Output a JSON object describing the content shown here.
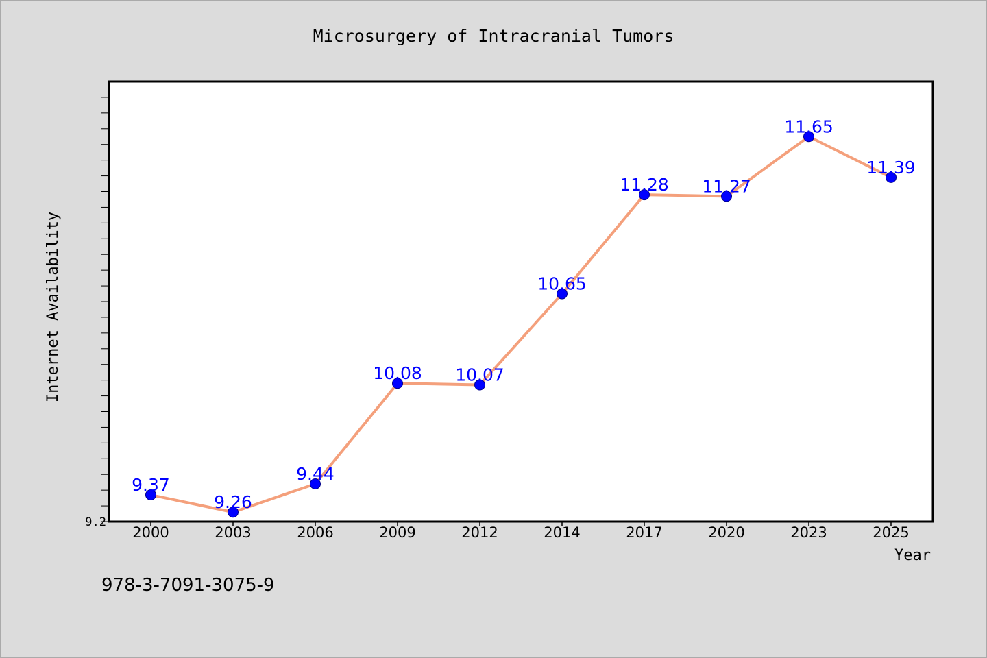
{
  "chart_data": {
    "type": "line",
    "title": "Microsurgery of Intracranial Tumors",
    "xlabel": "Year",
    "ylabel": "Internet Availability",
    "categories": [
      "2000",
      "2003",
      "2006",
      "2009",
      "2012",
      "2014",
      "2017",
      "2020",
      "2023",
      "2025"
    ],
    "series": [
      {
        "values": [
          9.37,
          9.26,
          9.44,
          10.08,
          10.07,
          10.65,
          11.28,
          11.27,
          11.65,
          11.39
        ],
        "labels": [
          "9.37",
          "9.26",
          "9.44",
          "10.08",
          "10.07",
          "10.65",
          "11.28",
          "11.27",
          "11.65",
          "11.39"
        ]
      }
    ],
    "ylim": [
      9.2,
      12.0
    ],
    "ytick_labels": [
      "9.2"
    ],
    "grid": false,
    "line_color": "#f4a07c",
    "marker_color": "#0000ff",
    "label_color": "#0000ff",
    "background_color": "#dcdcdc"
  },
  "footer": {
    "isbn": "978-3-7091-3075-9"
  }
}
